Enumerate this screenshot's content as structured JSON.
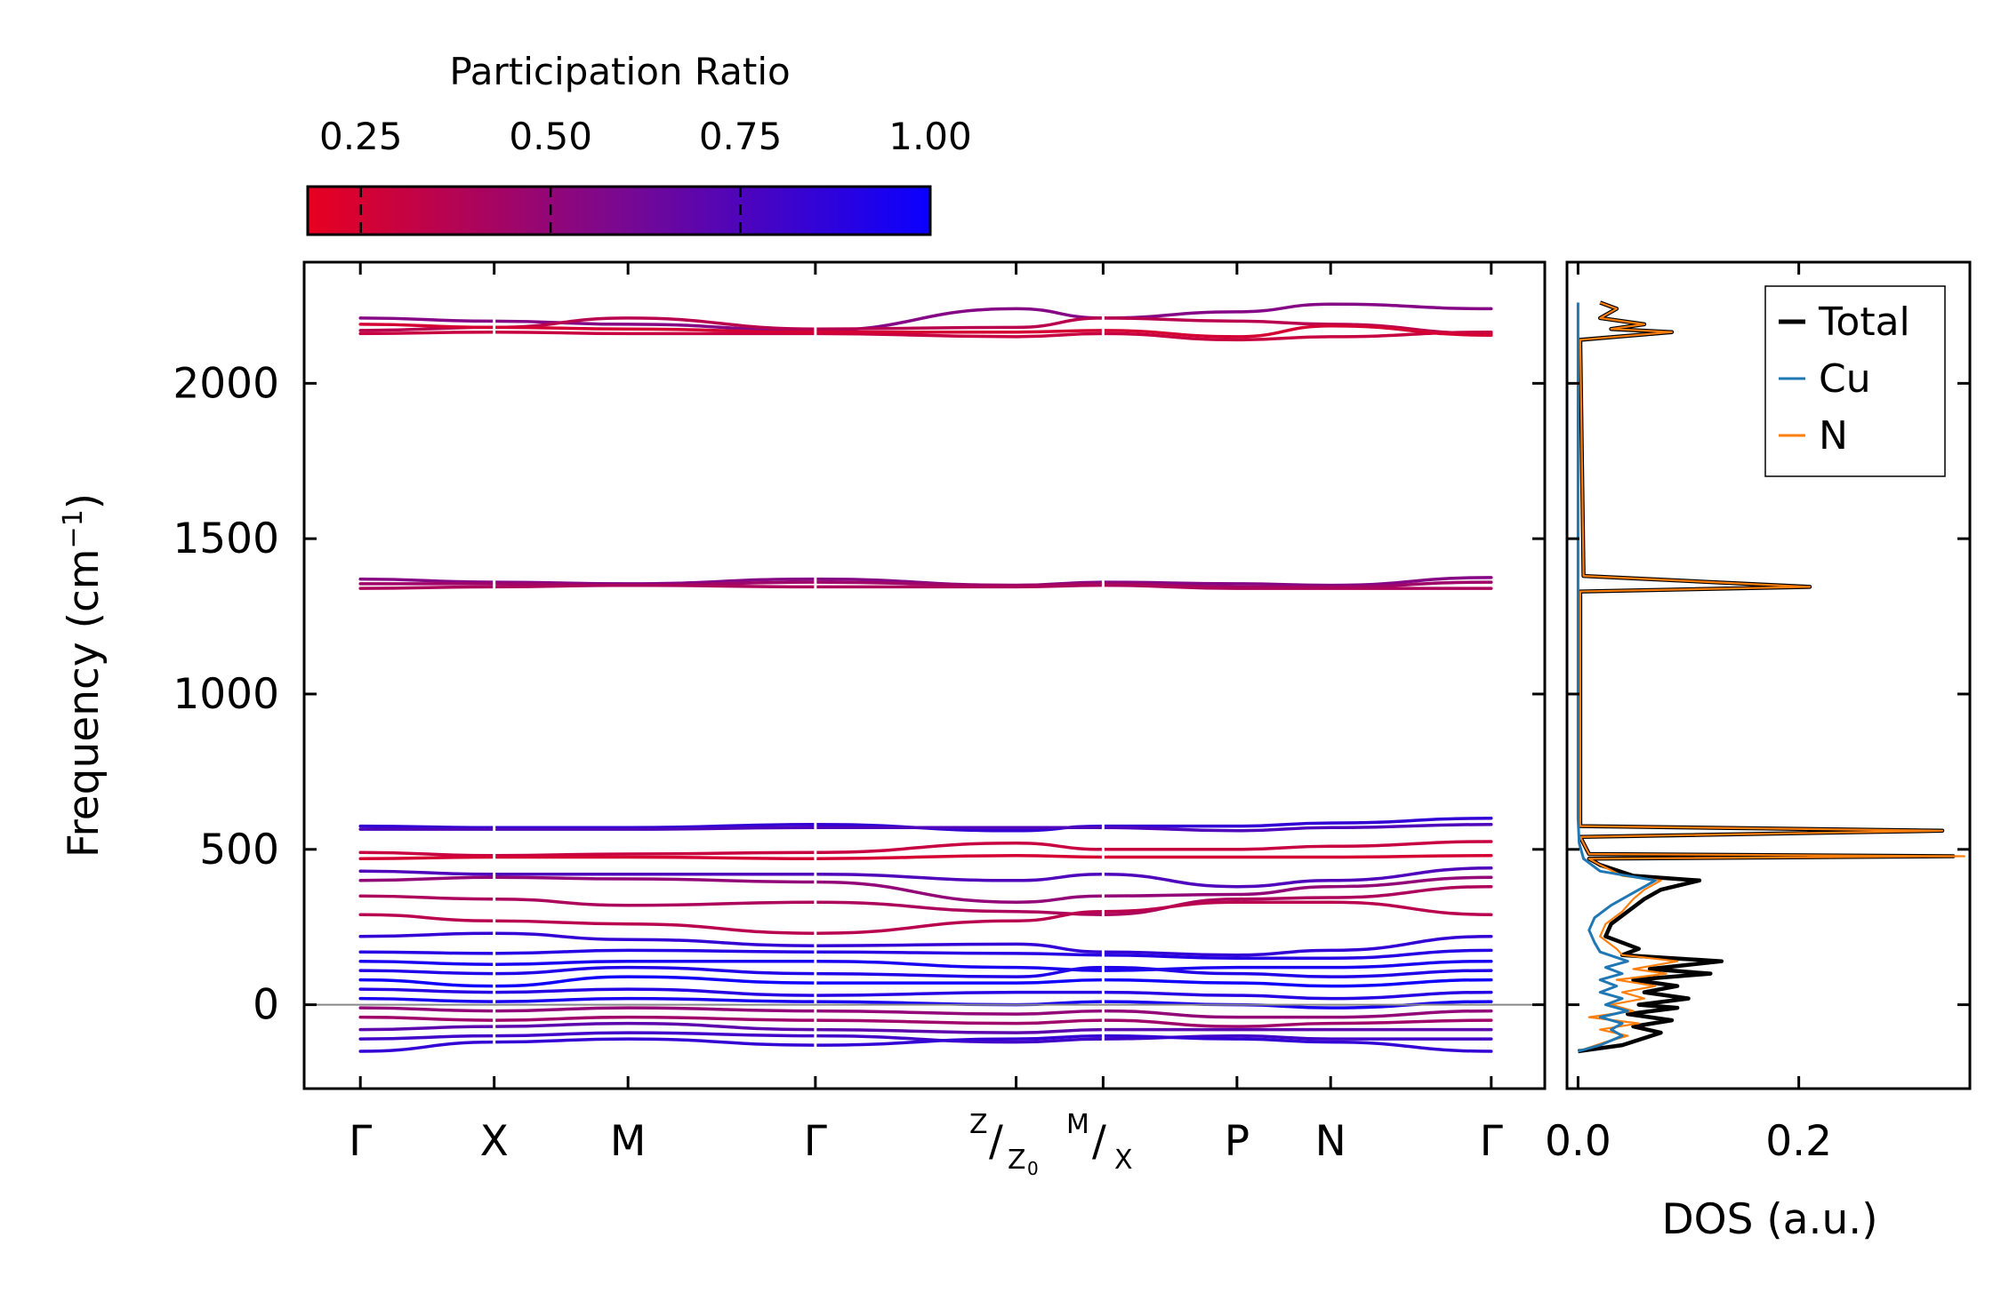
{
  "chart_data": [
    {
      "type": "line",
      "subtype": "phonon-band-structure",
      "title": "",
      "xlabel": "",
      "ylabel": "Frequency (cm",
      "ylabel_sup": "−1",
      "ylabel_close": ")",
      "ylim": [
        -270,
        2390
      ],
      "yticks": [
        0,
        500,
        1000,
        1500,
        2000
      ],
      "ytick_labels": [
        "0",
        "500",
        "1000",
        "1500",
        "2000"
      ],
      "kpath": [
        {
          "pos": 0.0,
          "label": "Γ"
        },
        {
          "pos": 1.0,
          "label": "X"
        },
        {
          "pos": 2.0,
          "label": "M"
        },
        {
          "pos": 3.4,
          "label": "Γ"
        },
        {
          "pos": 4.9,
          "label": ""
        },
        {
          "pos": 5.55,
          "label": ""
        },
        {
          "pos": 6.55,
          "label": "P"
        },
        {
          "pos": 7.25,
          "label": "N"
        },
        {
          "pos": 8.45,
          "label": "Γ"
        }
      ],
      "compound_label": {
        "left_a": "Z",
        "left_b": "Z",
        "left_sub": "0",
        "right_a": "M",
        "right_b": "X"
      },
      "segment_breaks": [
        1.0,
        3.4,
        5.55
      ],
      "reference_line": 0,
      "color_scale": {
        "title": "Participation Ratio",
        "min": 0.18,
        "max": 1.0,
        "low_color": "#e8001f",
        "mid_color": "#7a0890",
        "high_color": "#0a00ff",
        "ticks": [
          0.25,
          0.5,
          0.75,
          1.0
        ],
        "tick_labels": [
          "0.25",
          "0.50",
          "0.75",
          "1.00"
        ]
      },
      "bands": [
        {
          "group": "high",
          "values": [
            2210,
            2200,
            2190,
            2170,
            2240,
            2210,
            2230,
            2255,
            2240
          ],
          "pr": 0.55
        },
        {
          "group": "high",
          "values": [
            2170,
            2180,
            2210,
            2175,
            2180,
            2210,
            2200,
            2190,
            2160
          ],
          "pr": 0.35
        },
        {
          "group": "high",
          "values": [
            2160,
            2165,
            2160,
            2160,
            2150,
            2160,
            2140,
            2150,
            2165
          ],
          "pr": 0.3
        },
        {
          "group": "high",
          "values": [
            2190,
            2180,
            2175,
            2165,
            2165,
            2170,
            2150,
            2185,
            2155
          ],
          "pr": 0.25
        },
        {
          "group": "mid",
          "values": [
            1370,
            1360,
            1355,
            1370,
            1350,
            1360,
            1355,
            1350,
            1375
          ],
          "pr": 0.55
        },
        {
          "group": "mid",
          "values": [
            1355,
            1355,
            1350,
            1360,
            1350,
            1355,
            1345,
            1345,
            1360
          ],
          "pr": 0.45
        },
        {
          "group": "mid",
          "values": [
            1340,
            1345,
            1350,
            1345,
            1345,
            1350,
            1340,
            1340,
            1340
          ],
          "pr": 0.4
        },
        {
          "group": "low",
          "values": [
            575,
            570,
            570,
            580,
            560,
            575,
            575,
            585,
            600
          ],
          "pr": 0.85
        },
        {
          "group": "low",
          "values": [
            565,
            565,
            565,
            570,
            570,
            570,
            560,
            570,
            580
          ],
          "pr": 0.75
        },
        {
          "group": "low",
          "values": [
            490,
            480,
            485,
            490,
            520,
            500,
            500,
            510,
            525
          ],
          "pr": 0.3
        },
        {
          "group": "low",
          "values": [
            470,
            475,
            475,
            470,
            480,
            475,
            475,
            475,
            480
          ],
          "pr": 0.25
        },
        {
          "group": "low",
          "values": [
            430,
            420,
            420,
            420,
            400,
            420,
            380,
            400,
            440
          ],
          "pr": 0.75
        },
        {
          "group": "low",
          "values": [
            400,
            410,
            405,
            395,
            330,
            350,
            355,
            380,
            410
          ],
          "pr": 0.5
        },
        {
          "group": "low",
          "values": [
            350,
            340,
            320,
            330,
            300,
            290,
            340,
            345,
            380
          ],
          "pr": 0.4
        },
        {
          "group": "low",
          "values": [
            290,
            270,
            260,
            230,
            270,
            300,
            330,
            330,
            290
          ],
          "pr": 0.35
        },
        {
          "group": "low",
          "values": [
            220,
            230,
            210,
            190,
            195,
            170,
            160,
            175,
            220
          ],
          "pr": 0.85
        },
        {
          "group": "low",
          "values": [
            170,
            165,
            175,
            170,
            165,
            160,
            150,
            150,
            175
          ],
          "pr": 0.9
        },
        {
          "group": "low",
          "values": [
            140,
            130,
            140,
            140,
            120,
            110,
            120,
            120,
            140
          ],
          "pr": 0.95
        },
        {
          "group": "low",
          "values": [
            110,
            100,
            120,
            100,
            90,
            120,
            100,
            90,
            110
          ],
          "pr": 0.92
        },
        {
          "group": "low",
          "values": [
            80,
            60,
            90,
            70,
            70,
            80,
            70,
            60,
            80
          ],
          "pr": 0.98
        },
        {
          "group": "low",
          "values": [
            50,
            40,
            50,
            30,
            40,
            40,
            30,
            20,
            40
          ],
          "pr": 0.9
        },
        {
          "group": "low",
          "values": [
            20,
            10,
            20,
            10,
            0,
            10,
            0,
            -10,
            10
          ],
          "pr": 0.95
        },
        {
          "group": "low",
          "values": [
            -10,
            -20,
            -10,
            -20,
            -30,
            -20,
            -40,
            -40,
            -20
          ],
          "pr": 0.5
        },
        {
          "group": "low",
          "values": [
            -40,
            -50,
            -40,
            -50,
            -60,
            -50,
            -70,
            -60,
            -50
          ],
          "pr": 0.45
        },
        {
          "group": "low",
          "values": [
            -80,
            -70,
            -60,
            -80,
            -90,
            -80,
            -80,
            -80,
            -80
          ],
          "pr": 0.7
        },
        {
          "group": "low",
          "values": [
            -110,
            -100,
            -90,
            -100,
            -120,
            -110,
            -100,
            -110,
            -110
          ],
          "pr": 0.8
        },
        {
          "group": "low",
          "values": [
            -150,
            -120,
            -110,
            -130,
            -110,
            -100,
            -110,
            -120,
            -150
          ],
          "pr": 0.85
        }
      ]
    },
    {
      "type": "line",
      "subtype": "density-of-states",
      "xlabel": "DOS (a.u.)",
      "xlim": [
        -0.01,
        0.355
      ],
      "xticks": [
        0.0,
        0.2
      ],
      "xtick_labels": [
        "0.0",
        "0.2"
      ],
      "ylim": [
        -270,
        2390
      ],
      "legend_position": "upper right",
      "series": [
        {
          "name": "Total",
          "color": "#000000",
          "points": [
            [
              0.0,
              -150
            ],
            [
              0.04,
              -130
            ],
            [
              0.075,
              -90
            ],
            [
              0.05,
              -70
            ],
            [
              0.085,
              -50
            ],
            [
              0.045,
              -30
            ],
            [
              0.09,
              -10
            ],
            [
              0.055,
              0
            ],
            [
              0.1,
              20
            ],
            [
              0.06,
              40
            ],
            [
              0.09,
              60
            ],
            [
              0.05,
              80
            ],
            [
              0.12,
              100
            ],
            [
              0.065,
              115
            ],
            [
              0.13,
              140
            ],
            [
              0.04,
              160
            ],
            [
              0.055,
              180
            ],
            [
              0.025,
              220
            ],
            [
              0.03,
              260
            ],
            [
              0.045,
              300
            ],
            [
              0.06,
              340
            ],
            [
              0.075,
              370
            ],
            [
              0.11,
              400
            ],
            [
              0.05,
              415
            ],
            [
              0.02,
              450
            ],
            [
              0.01,
              470
            ],
            [
              0.34,
              478
            ],
            [
              0.01,
              485
            ],
            [
              0.002,
              540
            ],
            [
              0.33,
              560
            ],
            [
              0.002,
              575
            ],
            [
              0.002,
              1330
            ],
            [
              0.21,
              1345
            ],
            [
              0.005,
              1380
            ],
            [
              0.002,
              2140
            ],
            [
              0.085,
              2165
            ],
            [
              0.03,
              2175
            ],
            [
              0.06,
              2190
            ],
            [
              0.02,
              2210
            ],
            [
              0.035,
              2240
            ],
            [
              0.02,
              2260
            ]
          ]
        },
        {
          "name": "Cu",
          "color": "#1f77b4",
          "points": [
            [
              0.0,
              -150
            ],
            [
              0.02,
              -130
            ],
            [
              0.04,
              -100
            ],
            [
              0.03,
              -80
            ],
            [
              0.04,
              -60
            ],
            [
              0.02,
              -40
            ],
            [
              0.045,
              -20
            ],
            [
              0.025,
              0
            ],
            [
              0.04,
              20
            ],
            [
              0.02,
              40
            ],
            [
              0.035,
              60
            ],
            [
              0.02,
              80
            ],
            [
              0.04,
              100
            ],
            [
              0.025,
              120
            ],
            [
              0.045,
              140
            ],
            [
              0.02,
              170
            ],
            [
              0.015,
              200
            ],
            [
              0.01,
              240
            ],
            [
              0.015,
              280
            ],
            [
              0.03,
              320
            ],
            [
              0.05,
              360
            ],
            [
              0.07,
              400
            ],
            [
              0.02,
              430
            ],
            [
              0.005,
              470
            ],
            [
              0.001,
              520
            ],
            [
              0.0,
              600
            ],
            [
              0.0,
              2260
            ]
          ]
        },
        {
          "name": "N",
          "color": "#ff7f0e",
          "points": [
            [
              0.0,
              -150
            ],
            [
              0.025,
              -120
            ],
            [
              0.045,
              -100
            ],
            [
              0.02,
              -80
            ],
            [
              0.055,
              -60
            ],
            [
              0.01,
              -40
            ],
            [
              0.05,
              -20
            ],
            [
              0.03,
              0
            ],
            [
              0.06,
              20
            ],
            [
              0.04,
              40
            ],
            [
              0.07,
              60
            ],
            [
              0.035,
              80
            ],
            [
              0.08,
              100
            ],
            [
              0.05,
              115
            ],
            [
              0.09,
              140
            ],
            [
              0.04,
              160
            ],
            [
              0.035,
              180
            ],
            [
              0.02,
              220
            ],
            [
              0.025,
              260
            ],
            [
              0.04,
              300
            ],
            [
              0.05,
              340
            ],
            [
              0.06,
              370
            ],
            [
              0.075,
              400
            ],
            [
              0.04,
              415
            ],
            [
              0.02,
              450
            ],
            [
              0.01,
              470
            ],
            [
              0.35,
              478
            ],
            [
              0.01,
              485
            ],
            [
              0.002,
              540
            ],
            [
              0.33,
              560
            ],
            [
              0.002,
              575
            ],
            [
              0.002,
              1330
            ],
            [
              0.21,
              1345
            ],
            [
              0.005,
              1380
            ],
            [
              0.002,
              2140
            ],
            [
              0.085,
              2165
            ],
            [
              0.03,
              2175
            ],
            [
              0.06,
              2190
            ],
            [
              0.02,
              2210
            ],
            [
              0.035,
              2240
            ],
            [
              0.02,
              2260
            ]
          ]
        }
      ]
    }
  ]
}
